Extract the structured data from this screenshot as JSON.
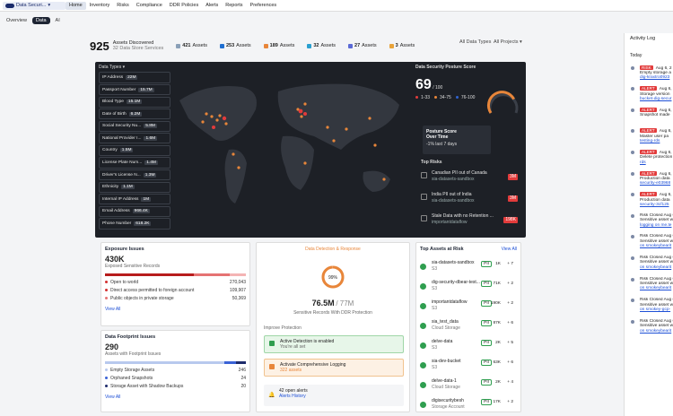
{
  "nav": {
    "brand": "Data Securi...",
    "items": [
      "Home",
      "Inventory",
      "Risks",
      "Compliance",
      "DDR Policies",
      "Alerts",
      "Reports",
      "Preferences"
    ]
  },
  "tabs": [
    "Overview",
    "Data",
    "AI"
  ],
  "summary": {
    "total": "925",
    "label": "Assets Discovered",
    "sublabel": "32 Data Store Services",
    "counts": [
      {
        "n": "421",
        "l": "Assets",
        "c": "#8aa0b8"
      },
      {
        "n": "253",
        "l": "Assets",
        "c": "#1f6fd1"
      },
      {
        "n": "189",
        "l": "Assets",
        "c": "#e8863a"
      },
      {
        "n": "32",
        "l": "Assets",
        "c": "#2aa0d0"
      },
      {
        "n": "27",
        "l": "Assets",
        "c": "#5b6ad6"
      },
      {
        "n": "3",
        "l": "Assets",
        "c": "#e8a33a"
      }
    ],
    "filter1": "All Data Types",
    "filter2": "All Projects"
  },
  "data_types": {
    "header": "Data Types",
    "items": [
      {
        "l": "IP Address",
        "v": "22M"
      },
      {
        "l": "Passport Number",
        "v": "15.7M"
      },
      {
        "l": "Blood Type",
        "v": "15.1M"
      },
      {
        "l": "Date of Birth",
        "v": "6.2M"
      },
      {
        "l": "Social Security Nu...",
        "v": "5.8M"
      },
      {
        "l": "National Provider I...",
        "v": "1.6M"
      },
      {
        "l": "Country",
        "v": "1.5M"
      },
      {
        "l": "License Plate Num...",
        "v": "1.4M"
      },
      {
        "l": "Driver's License N...",
        "v": "1.3M"
      },
      {
        "l": "Ethnicity",
        "v": "1.1M"
      },
      {
        "l": "Internal IP Address",
        "v": "1M"
      },
      {
        "l": "Email Address",
        "v": "966.4K"
      },
      {
        "l": "Phone Number",
        "v": "618.2K"
      }
    ]
  },
  "posture": {
    "title": "Data Security Posture Score",
    "score": "69",
    "outof": "/ 100",
    "score_value": 69,
    "legend": [
      {
        "l": "1-33",
        "c": "#e23b3b"
      },
      {
        "l": "34-75",
        "c": "#e8863a"
      },
      {
        "l": "76-100",
        "c": "#2f63d1"
      }
    ],
    "over_time": "Posture Score Over Time",
    "delta": "-1% last 7 days"
  },
  "top_risks": {
    "title": "Top Risks",
    "items": [
      {
        "l": "Canadian PII out of Canada",
        "s": "sia-datasets-sandbox",
        "b": "3M"
      },
      {
        "l": "India PII out of India",
        "s": "sia-datasets-sandbox",
        "b": "3M"
      },
      {
        "l": "Stale Data with no Retention ...",
        "s": "importantdataflow",
        "b": "198K"
      }
    ]
  },
  "exposure": {
    "title": "Exposure Issues",
    "value": "430K",
    "sub": "Exposed Sensitive Records",
    "rows": [
      {
        "l": "Open to world",
        "v": "270,043",
        "c": "#d32f2f"
      },
      {
        "l": "Direct access permitted to foreign account",
        "v": "109,907",
        "c": "#d32f2f"
      },
      {
        "l": "Public objects in private storage",
        "v": "50,369",
        "c": "#e57373"
      }
    ],
    "view": "View All"
  },
  "footprint": {
    "title": "Data Footprint Issues",
    "value": "290",
    "sub": "Assets with Footprint Issues",
    "rows": [
      {
        "l": "Empty Storage Assets",
        "v": "246"
      },
      {
        "l": "Orphaned Snapshots",
        "v": "24"
      },
      {
        "l": "Storage Asset with Shadow Backups",
        "v": "20"
      }
    ],
    "view": "View All"
  },
  "ddr": {
    "title": "Data Detection & Response",
    "pct": "99%",
    "pct_value": 99,
    "total": "76.5M",
    "outof": "/ 77M",
    "sub": "Sensitive Records With DDR Protection",
    "improve": "Improve Protection",
    "active": "Active Detection is enabled",
    "active_sub": "You're all set",
    "logging": "Activate Comprehensive Logging",
    "logging_sub": "322 assets",
    "alerts": "42 open alerts",
    "alerts_link": "Alerts History"
  },
  "top_assets": {
    "title": "Top Assets at Risk",
    "view": "View All",
    "items": [
      {
        "n": "sia-datasets-sandbox",
        "t": "S3",
        "b": "PII",
        "v": "1K",
        "p": "+ 7"
      },
      {
        "n": "dig-security-dbear-test...",
        "t": "S3",
        "b": "PII",
        "v": "71K",
        "p": "+ 2"
      },
      {
        "n": "importantdataflow",
        "t": "S3",
        "b": "PII",
        "v": "190K",
        "p": "+ 2"
      },
      {
        "n": "sia_test_data",
        "t": "Cloud Storage",
        "b": "PII",
        "v": "87K",
        "p": "+ 6"
      },
      {
        "n": "delve-data",
        "t": "S3",
        "b": "PII",
        "v": "2K",
        "p": "+ 5"
      },
      {
        "n": "sia-dev-bucket",
        "t": "S3",
        "b": "PII",
        "v": "63K",
        "p": "+ 6"
      },
      {
        "n": "delve-data-1",
        "t": "Cloud Storage",
        "b": "PII",
        "v": "2K",
        "p": "+ 4"
      },
      {
        "n": "digisecuritybesh",
        "t": "Storage Account",
        "b": "PII",
        "v": "17K",
        "p": "+ 2"
      }
    ]
  },
  "activity": {
    "title": "Activity Log",
    "today": "Today",
    "items": [
      {
        "tag": "RISK",
        "d": "Aug 6, 2",
        "l1": "Empty storage a",
        "l2": "dig-kraxtro0923"
      },
      {
        "tag": "ALERT",
        "d": "Aug 6, 2",
        "l1": "Storage version",
        "l2": "bucket-dig-secur"
      },
      {
        "tag": "ALERT",
        "d": "Aug 6, 2",
        "l1": "Snapshot made",
        "l2": ""
      },
      {
        "tag": "ALERT",
        "d": "Aug 6, 2",
        "l1": "Master user pa",
        "l2": "testing-rds"
      },
      {
        "tag": "ALERT",
        "d": "Aug 6, 2",
        "l1": "Delete protection",
        "l2": "rds"
      },
      {
        "tag": "ALERT",
        "d": "Aug 6, 2",
        "l1": "Production data",
        "l2": "security-e03968"
      },
      {
        "tag": "ALERT",
        "d": "Aug 6, 2",
        "l1": "Production data",
        "l2": "security-3cf125"
      },
      {
        "tag": "",
        "d": "Risk Closed  Aug 6",
        "l1": "Sensitive asset w",
        "l2": "logging on me.te"
      },
      {
        "tag": "",
        "d": "Risk Closed  Aug 6",
        "l1": "Sensitive asset w",
        "l2": "on smokeybearit"
      },
      {
        "tag": "",
        "d": "Risk Closed  Aug 6",
        "l1": "Sensitive asset w",
        "l2": "on smokeybearit"
      },
      {
        "tag": "",
        "d": "Risk Closed  Aug 6",
        "l1": "Sensitive asset w",
        "l2": "on smokeybearit"
      },
      {
        "tag": "",
        "d": "Risk Closed  Aug 6",
        "l1": "Sensitive asset w",
        "l2": "on smokey-gcp-"
      },
      {
        "tag": "",
        "d": "Risk Closed  Aug 6",
        "l1": "Sensitive asset w",
        "l2": "on smokeybearit"
      }
    ]
  }
}
